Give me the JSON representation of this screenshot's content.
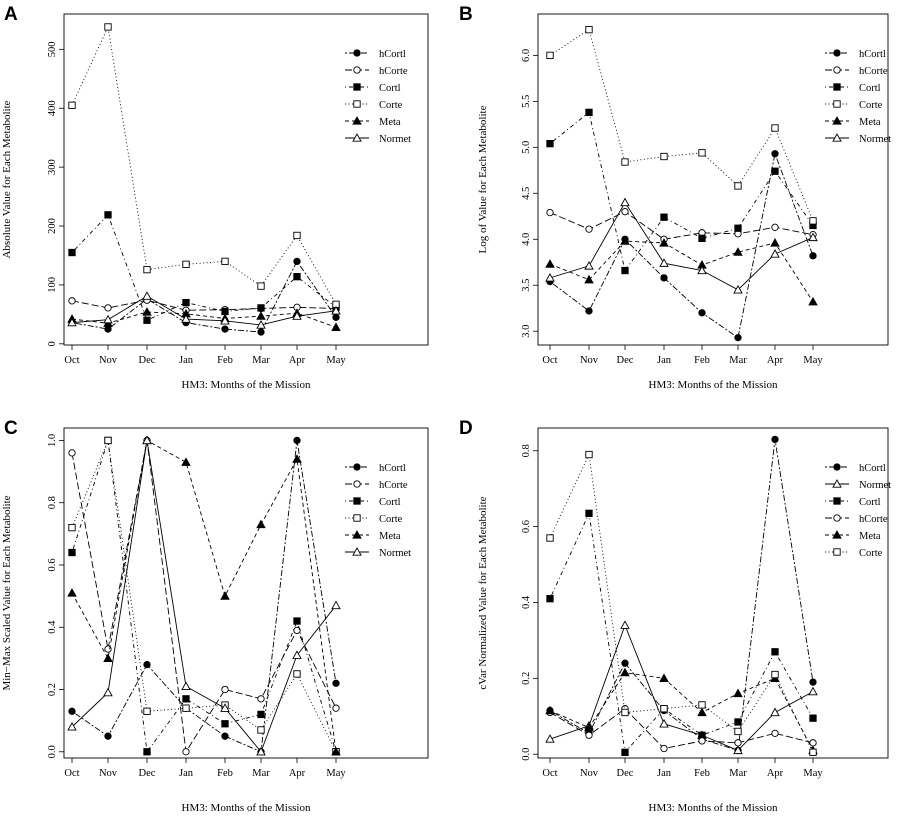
{
  "chart_data": [
    {
      "panel": "A",
      "type": "line",
      "xlabel": "HM3: Months of the Mission",
      "ylabel": "Absolute Value for Each Metabolite",
      "categories": [
        "Oct",
        "Nov",
        "Dec",
        "Jan",
        "Feb",
        "Mar",
        "Apr",
        "May"
      ],
      "ylim": [
        -2,
        560
      ],
      "yticks": [
        0,
        100,
        200,
        300,
        400,
        500
      ],
      "legend_position": "top-right",
      "series": [
        {
          "name": "hCortl",
          "style": "twodash",
          "marker": "circle-filled",
          "values": [
            36,
            25,
            76,
            36,
            25,
            20,
            140,
            45
          ]
        },
        {
          "name": "hCorte",
          "style": "longdash",
          "marker": "circle-open",
          "values": [
            73,
            61,
            74,
            57,
            58,
            60,
            62,
            60
          ]
        },
        {
          "name": "Cortl",
          "style": "dotdash",
          "marker": "square-filled",
          "values": [
            155,
            219,
            40,
            70,
            55,
            61,
            114,
            62
          ]
        },
        {
          "name": "Corte",
          "style": "dotted",
          "marker": "square-open",
          "values": [
            405,
            538,
            126,
            135,
            140,
            98,
            184,
            67
          ]
        },
        {
          "name": "Meta",
          "style": "dashed",
          "marker": "triangle-filled",
          "values": [
            42,
            35,
            54,
            51,
            43,
            47,
            52,
            28
          ]
        },
        {
          "name": "Normet",
          "style": "solid",
          "marker": "triangle-open",
          "values": [
            36,
            41,
            81,
            42,
            39,
            32,
            47,
            56
          ]
        }
      ]
    },
    {
      "panel": "B",
      "type": "line",
      "xlabel": "HM3: Months of the Mission",
      "ylabel": "Log of Value for Each Metabolite",
      "categories": [
        "Oct",
        "Nov",
        "Dec",
        "Jan",
        "Feb",
        "Mar",
        "Apr",
        "May"
      ],
      "ylim": [
        2.85,
        6.45
      ],
      "yticks": [
        3.0,
        3.5,
        4.0,
        4.5,
        5.0,
        5.5,
        6.0
      ],
      "ytick_labels": [
        "3.0",
        "3.5",
        "4.0",
        "4.5",
        "5.0",
        "5.5",
        "6.0"
      ],
      "legend_position": "top-right",
      "series": [
        {
          "name": "hCortl",
          "style": "twodash",
          "marker": "circle-filled",
          "values": [
            3.54,
            3.22,
            4.0,
            3.58,
            3.2,
            2.93,
            4.93,
            3.82
          ]
        },
        {
          "name": "hCorte",
          "style": "longdash",
          "marker": "circle-open",
          "values": [
            4.29,
            4.11,
            4.3,
            4.0,
            4.07,
            4.06,
            4.13,
            4.05
          ]
        },
        {
          "name": "Cortl",
          "style": "dotdash",
          "marker": "square-filled",
          "values": [
            5.04,
            5.38,
            3.66,
            4.24,
            4.01,
            4.12,
            4.74,
            4.15
          ]
        },
        {
          "name": "Corte",
          "style": "dotted",
          "marker": "square-open",
          "values": [
            6.0,
            6.28,
            4.84,
            4.9,
            4.94,
            4.58,
            5.21,
            4.2
          ]
        },
        {
          "name": "Meta",
          "style": "dashed",
          "marker": "triangle-filled",
          "values": [
            3.73,
            3.56,
            3.98,
            3.96,
            3.72,
            3.86,
            3.96,
            3.32
          ]
        },
        {
          "name": "Normet",
          "style": "solid",
          "marker": "triangle-open",
          "values": [
            3.58,
            3.71,
            4.4,
            3.74,
            3.66,
            3.45,
            3.84,
            4.02
          ]
        }
      ]
    },
    {
      "panel": "C",
      "type": "line",
      "xlabel": "HM3: Months of the Mission",
      "ylabel": "Min−Max Scaled Value for Each Metabolite",
      "categories": [
        "Oct",
        "Nov",
        "Dec",
        "Jan",
        "Feb",
        "Mar",
        "Apr",
        "May"
      ],
      "ylim": [
        -0.02,
        1.04
      ],
      "yticks": [
        0.0,
        0.2,
        0.4,
        0.6,
        0.8,
        1.0
      ],
      "ytick_labels": [
        "0.0",
        "0.2",
        "0.4",
        "0.6",
        "0.8",
        "1.0"
      ],
      "legend_position": "top-right",
      "series": [
        {
          "name": "hCortl",
          "style": "twodash",
          "marker": "circle-filled",
          "values": [
            0.13,
            0.05,
            0.28,
            0.14,
            0.05,
            0.0,
            1.0,
            0.22
          ]
        },
        {
          "name": "hCorte",
          "style": "longdash",
          "marker": "circle-open",
          "values": [
            0.96,
            0.33,
            1.0,
            0.0,
            0.2,
            0.17,
            0.39,
            0.14
          ]
        },
        {
          "name": "Cortl",
          "style": "dotdash",
          "marker": "square-filled",
          "values": [
            0.64,
            1.0,
            0.0,
            0.17,
            0.09,
            0.12,
            0.42,
            0.0
          ]
        },
        {
          "name": "Corte",
          "style": "dotted",
          "marker": "square-open",
          "values": [
            0.72,
            1.0,
            0.13,
            0.14,
            0.15,
            0.07,
            0.25,
            0.0
          ]
        },
        {
          "name": "Meta",
          "style": "dashed",
          "marker": "triangle-filled",
          "values": [
            0.51,
            0.3,
            1.0,
            0.93,
            0.5,
            0.73,
            0.94,
            0.0
          ]
        },
        {
          "name": "Normet",
          "style": "solid",
          "marker": "triangle-open",
          "values": [
            0.08,
            0.19,
            1.0,
            0.21,
            0.14,
            0.0,
            0.31,
            0.47
          ]
        }
      ]
    },
    {
      "panel": "D",
      "type": "line",
      "xlabel": "HM3: Months of the Mission",
      "ylabel": "cVar Normalized Value for Each Metabolite",
      "categories": [
        "Oct",
        "Nov",
        "Dec",
        "Jan",
        "Feb",
        "Mar",
        "Apr",
        "May"
      ],
      "ylim": [
        -0.01,
        0.86
      ],
      "yticks": [
        0.0,
        0.2,
        0.4,
        0.6,
        0.8
      ],
      "ytick_labels": [
        "0.0",
        "0.2",
        "0.4",
        "0.6",
        "0.8"
      ],
      "legend_position": "top-right",
      "series": [
        {
          "name": "hCortl",
          "style": "twodash",
          "marker": "circle-filled",
          "values": [
            0.115,
            0.055,
            0.24,
            0.115,
            0.04,
            0.01,
            0.83,
            0.19
          ]
        },
        {
          "name": "Normet",
          "style": "solid",
          "marker": "triangle-open",
          "values": [
            0.04,
            0.075,
            0.34,
            0.08,
            0.05,
            0.01,
            0.11,
            0.165
          ]
        },
        {
          "name": "Cortl",
          "style": "dotdash",
          "marker": "square-filled",
          "values": [
            0.41,
            0.635,
            0.005,
            0.12,
            0.05,
            0.085,
            0.27,
            0.095
          ]
        },
        {
          "name": "hCorte",
          "style": "longdash",
          "marker": "circle-open",
          "values": [
            0.11,
            0.05,
            0.12,
            0.015,
            0.035,
            0.03,
            0.055,
            0.03
          ]
        },
        {
          "name": "Meta",
          "style": "dashed",
          "marker": "triangle-filled",
          "values": [
            0.115,
            0.07,
            0.215,
            0.2,
            0.11,
            0.16,
            0.2,
            0.01
          ]
        },
        {
          "name": "Corte",
          "style": "dotted",
          "marker": "square-open",
          "values": [
            0.57,
            0.79,
            0.11,
            0.12,
            0.13,
            0.06,
            0.21,
            0.005
          ]
        }
      ]
    }
  ]
}
